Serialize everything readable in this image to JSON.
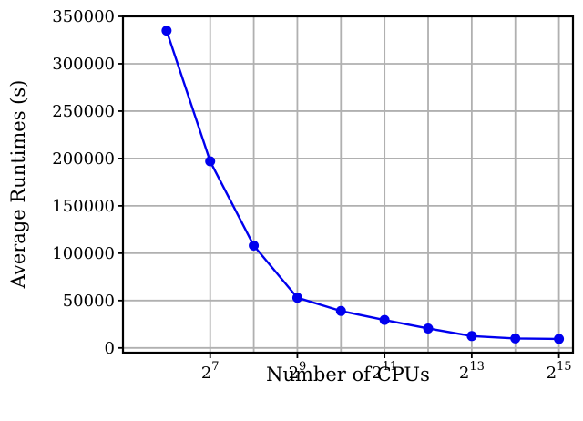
{
  "chart_data": {
    "type": "line",
    "title": "",
    "xlabel": "Number of CPUs",
    "ylabel": "Average Runtimes (s)",
    "x_scale": "log2",
    "xlim": [
      32,
      40960
    ],
    "ylim": [
      -5000,
      350000
    ],
    "grid": true,
    "x_ticks": [
      {
        "value": 128,
        "base": "2",
        "exp": "7"
      },
      {
        "value": 512,
        "base": "2",
        "exp": "9"
      },
      {
        "value": 2048,
        "base": "2",
        "exp": "11"
      },
      {
        "value": 8192,
        "base": "2",
        "exp": "13"
      },
      {
        "value": 32768,
        "base": "2",
        "exp": "15"
      }
    ],
    "x_minor_grid": [
      256,
      1024,
      4096,
      16384
    ],
    "y_ticks": [
      0,
      50000,
      100000,
      150000,
      200000,
      250000,
      300000,
      350000
    ],
    "series": [
      {
        "color": "#0000ee",
        "marker": "circle",
        "x": [
          64,
          128,
          256,
          512,
          1024,
          2048,
          4096,
          8192,
          16384,
          32768
        ],
        "y": [
          335000,
          197000,
          108000,
          53000,
          39000,
          29500,
          20500,
          12500,
          10000,
          9500
        ]
      }
    ]
  }
}
